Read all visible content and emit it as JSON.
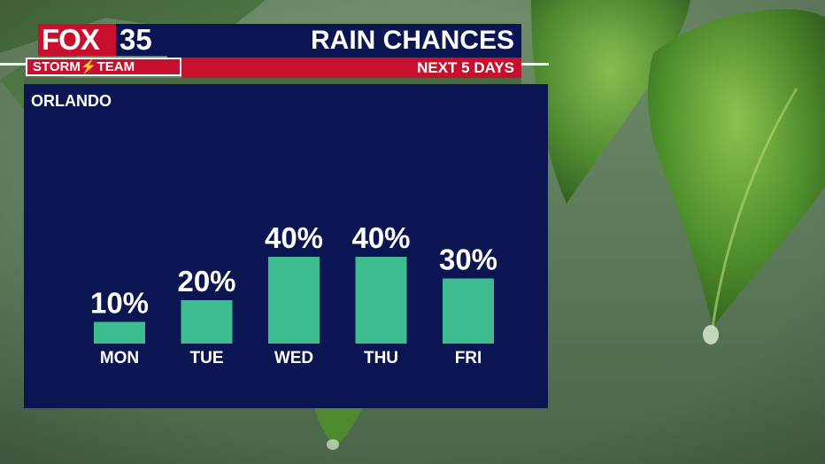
{
  "logo": {
    "brand": "FOX",
    "channel": "35",
    "team": "STORM⚡TEAM"
  },
  "header": {
    "title": "RAIN CHANCES",
    "subtitle": "NEXT 5 DAYS"
  },
  "location": "ORLANDO",
  "colors": {
    "navy": "#0a1552",
    "red": "#c8102e",
    "bar": "#3dbd8f",
    "text": "#ffffff"
  },
  "chart_data": {
    "type": "bar",
    "categories": [
      "MON",
      "TUE",
      "WED",
      "THU",
      "FRI"
    ],
    "values": [
      10,
      20,
      40,
      40,
      30
    ],
    "value_labels": [
      "10%",
      "20%",
      "40%",
      "40%",
      "30%"
    ],
    "unit": "%",
    "title": "RAIN CHANCES",
    "subtitle": "NEXT 5 DAYS",
    "xlabel": "",
    "ylabel": "",
    "ylim": [
      0,
      40
    ],
    "grid": false,
    "legend": "none"
  }
}
